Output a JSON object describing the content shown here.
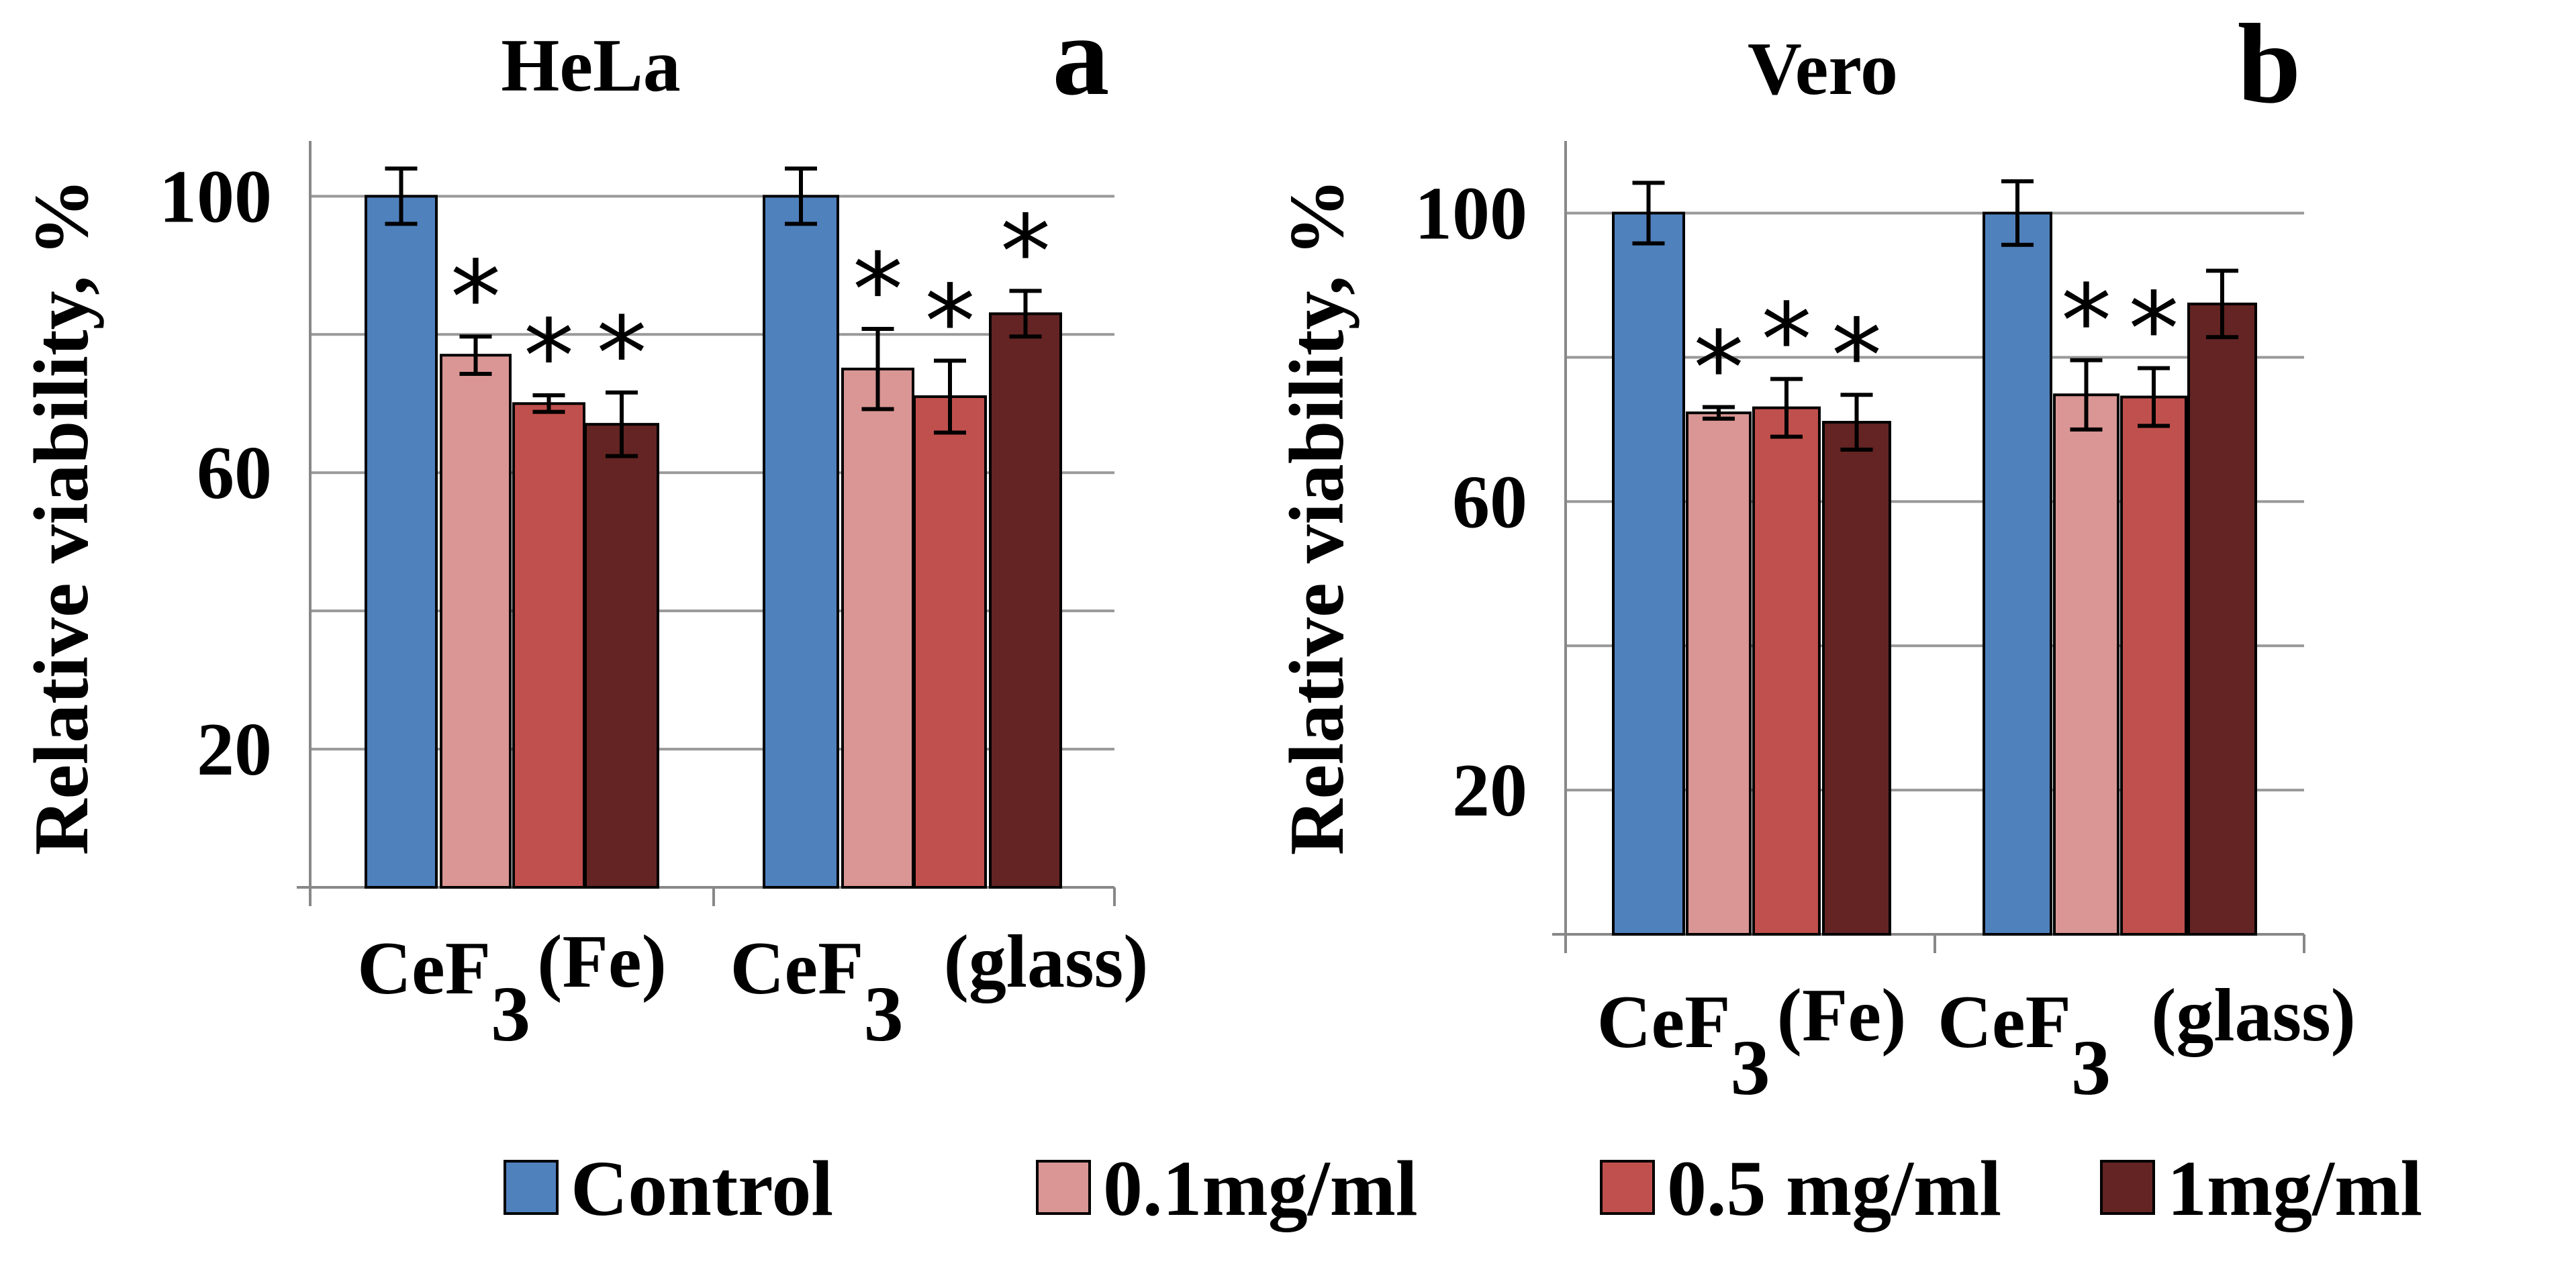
{
  "colors": {
    "control": "#4F81BD",
    "c01": "#DA9694",
    "c05": "#C0504D",
    "c1": "#632423"
  },
  "legend": [
    {
      "label": "Control",
      "color_key": "control"
    },
    {
      "label": "0.1mg/ml",
      "color_key": "c01"
    },
    {
      "label": "0.5 mg/ml",
      "color_key": "c05"
    },
    {
      "label": "1mg/ml",
      "color_key": "c1"
    }
  ],
  "chart_data": [
    {
      "type": "bar",
      "title": "HeLa",
      "panel_letter": "a",
      "ylabel": "Relative viability",
      "ylabel_unit": ", %",
      "ylim": [
        0,
        108
      ],
      "yticks": [
        20,
        60,
        100
      ],
      "grid_step": 20,
      "categories": [
        {
          "main": "CeF",
          "sub": "3",
          "suffix": "(Fe)"
        },
        {
          "main": "CeF",
          "sub": "3",
          "suffix": "(glass)"
        }
      ],
      "series": [
        {
          "name": "Control",
          "color_key": "control",
          "values": [
            100,
            100
          ],
          "errors": [
            4,
            4
          ],
          "marks": [
            "",
            ""
          ]
        },
        {
          "name": "0.1mg/ml",
          "color_key": "c01",
          "values": [
            77,
            75
          ],
          "errors": [
            2.7,
            5.8
          ],
          "marks": [
            "*",
            "*"
          ]
        },
        {
          "name": "0.5 mg/ml",
          "color_key": "c05",
          "values": [
            70,
            71
          ],
          "errors": [
            1.2,
            5.2
          ],
          "marks": [
            "*",
            "*"
          ]
        },
        {
          "name": "1mg/ml",
          "color_key": "c1",
          "values": [
            67,
            83
          ],
          "errors": [
            4.6,
            3.3
          ],
          "marks": [
            "*",
            "*"
          ]
        }
      ]
    },
    {
      "type": "bar",
      "title": "Vero",
      "panel_letter": "b",
      "ylabel": "Relative viability",
      "ylabel_unit": ", %",
      "ylim": [
        0,
        110
      ],
      "yticks": [
        20,
        60,
        100
      ],
      "grid_step": 20,
      "categories": [
        {
          "main": "CeF",
          "sub": "3",
          "suffix": "(Fe)"
        },
        {
          "main": "CeF",
          "sub": "3",
          "suffix": "(glass)"
        }
      ],
      "series": [
        {
          "name": "Control",
          "color_key": "control",
          "values": [
            100,
            100
          ],
          "errors": [
            4.2,
            4.4
          ],
          "marks": [
            "",
            ""
          ]
        },
        {
          "name": "0.1mg/ml",
          "color_key": "c01",
          "values": [
            72.3,
            74.8
          ],
          "errors": [
            0.8,
            4.8
          ],
          "marks": [
            "*",
            "*"
          ]
        },
        {
          "name": "0.5 mg/ml",
          "color_key": "c05",
          "values": [
            73,
            74.5
          ],
          "errors": [
            4,
            4
          ],
          "marks": [
            "*",
            "*"
          ]
        },
        {
          "name": "1mg/ml",
          "color_key": "c1",
          "values": [
            71,
            87.4
          ],
          "errors": [
            3.8,
            4.6
          ],
          "marks": [
            "*",
            ""
          ]
        }
      ]
    }
  ]
}
